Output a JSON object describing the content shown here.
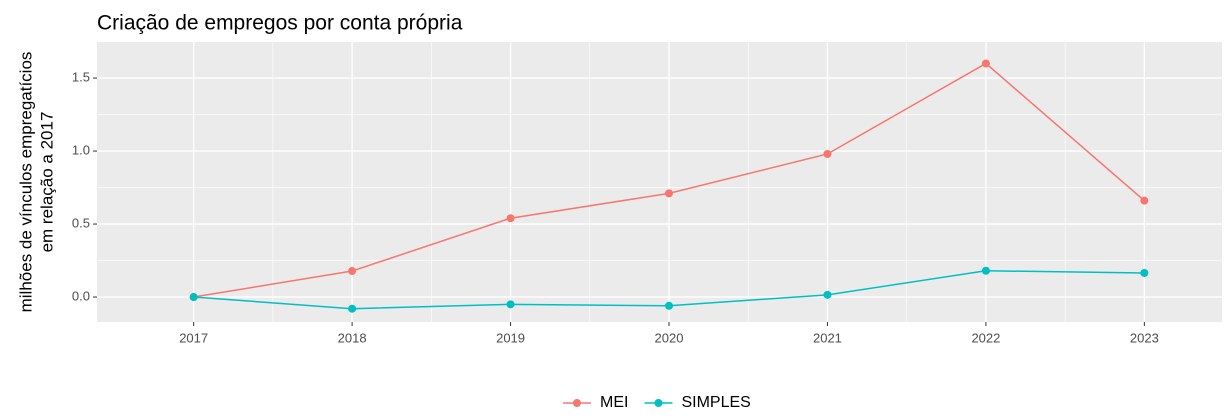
{
  "chart_data": {
    "type": "line",
    "title": "Criação de empregos por conta própria",
    "y_label": [
      "milhões de vínculos empregatícios",
      "em relação a 2017"
    ],
    "x": [
      2017,
      2018,
      2019,
      2020,
      2021,
      2022,
      2023
    ],
    "series": [
      {
        "name": "MEI",
        "color": "#F8766D",
        "values": [
          0,
          0.178,
          0.54,
          0.71,
          0.98,
          1.6,
          0.66
        ]
      },
      {
        "name": "SIMPLES",
        "color": "#00BFC4",
        "values": [
          0,
          -0.08,
          -0.05,
          -0.06,
          0.015,
          0.18,
          0.165
        ]
      }
    ],
    "xlim": [
      2016.39,
      2023.49
    ],
    "xticks": [
      2017,
      2018,
      2019,
      2020,
      2021,
      2022,
      2023
    ],
    "ylim": [
      -0.171,
      1.747
    ],
    "yticks": [
      {
        "value": 0,
        "label": "0.0"
      },
      {
        "value": 0.5,
        "label": "0.5"
      },
      {
        "value": 1,
        "label": "1.0"
      },
      {
        "value": 1.5,
        "label": "1.5"
      }
    ],
    "grid": true,
    "legend": "bottom"
  }
}
